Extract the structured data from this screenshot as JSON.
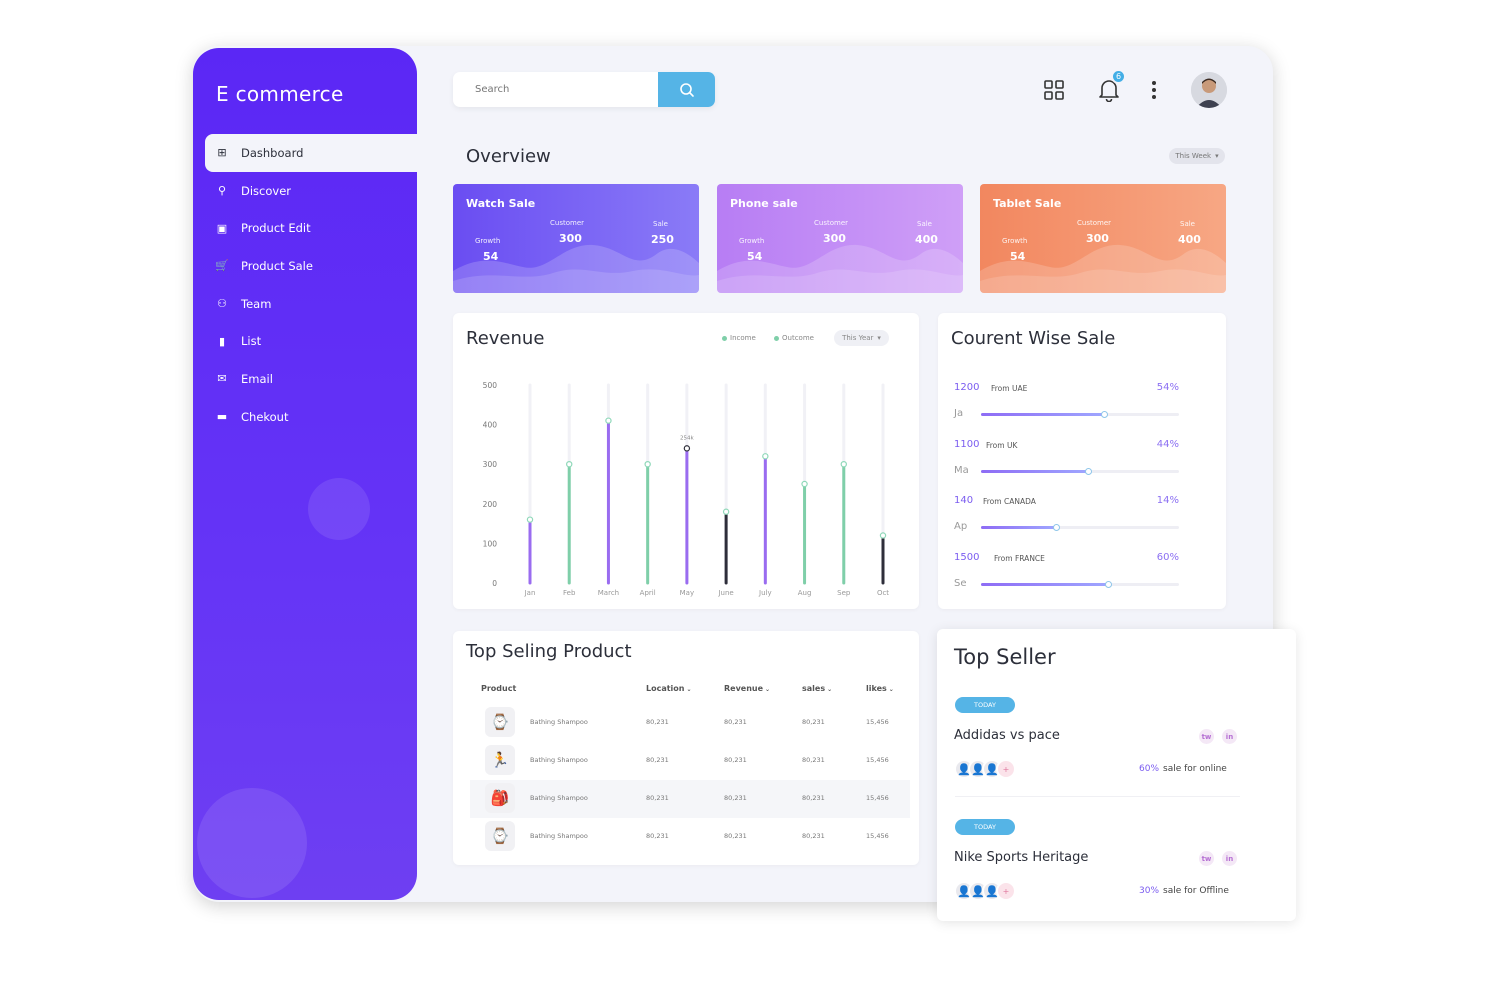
{
  "sidebar": {
    "brand": "E commerce",
    "items": [
      {
        "label": "Dashboard",
        "icon": "grid-icon",
        "active": true
      },
      {
        "label": "Discover",
        "icon": "search-icon"
      },
      {
        "label": "Product Edit",
        "icon": "edit-icon"
      },
      {
        "label": "Product Sale",
        "icon": "cart-icon"
      },
      {
        "label": "Team",
        "icon": "team-icon"
      },
      {
        "label": "List",
        "icon": "bar-chart-icon"
      },
      {
        "label": "Email",
        "icon": "mail-icon"
      },
      {
        "label": "Chekout",
        "icon": "card-icon"
      }
    ]
  },
  "header": {
    "search_placeholder": "Search",
    "notification_count": "6"
  },
  "overview": {
    "title": "Overview",
    "period": "This Week",
    "cards": [
      {
        "title": "Watch Sale",
        "growth_label": "Growth",
        "growth": "54",
        "customer_label": "Customer",
        "customer": "300",
        "sale_label": "Sale",
        "sale": "250",
        "color_from": "#6a4df2",
        "color_to": "#8a7bf7"
      },
      {
        "title": "Phone sale",
        "growth_label": "Growth",
        "growth": "54",
        "customer_label": "Customer",
        "customer": "300",
        "sale_label": "Sale",
        "sale": "400",
        "color_from": "#b77df4",
        "color_to": "#cf9ff7"
      },
      {
        "title": "Tablet Sale",
        "growth_label": "Growth",
        "growth": "54",
        "customer_label": "Customer",
        "customer": "300",
        "sale_label": "Sale",
        "sale": "400",
        "color_from": "#f2875f",
        "color_to": "#f7a784"
      }
    ]
  },
  "revenue": {
    "title": "Revenue",
    "legend_income": "Income",
    "legend_outcome": "Outcome",
    "period": "This Year",
    "peak_label": "254k"
  },
  "chart_data": {
    "type": "bar",
    "title": "Revenue",
    "categories": [
      "Jan",
      "Feb",
      "March",
      "April",
      "May",
      "June",
      "July",
      "Aug",
      "Sep",
      "Oct"
    ],
    "yticks": [
      "500",
      "400",
      "300",
      "200",
      "100",
      "0"
    ],
    "ylim": [
      0,
      500
    ],
    "values": [
      160,
      300,
      410,
      300,
      340,
      180,
      320,
      250,
      300,
      120
    ],
    "series_colors": [
      "#9a6cf0",
      "#7fcfa9",
      "#9a6cf0",
      "#7fcfa9",
      "#9a6cf0",
      "#2e2e3a",
      "#9a6cf0",
      "#7fcfa9",
      "#7fcfa9",
      "#2e2e3a"
    ],
    "grid": false,
    "legend": "top-right"
  },
  "current_wise_sale": {
    "title": "Courent Wise Sale",
    "rows": [
      {
        "num": "1200",
        "from": "From UAE",
        "pct": "54%",
        "abbr": "Ja",
        "fill": 0.62
      },
      {
        "num": "1100",
        "from": "From UK",
        "pct": "44%",
        "abbr": "Ma",
        "fill": 0.54
      },
      {
        "num": "140",
        "from": "From CANADA",
        "pct": "14%",
        "abbr": "Ap",
        "fill": 0.38
      },
      {
        "num": "1500",
        "from": "From FRANCE",
        "pct": "60%",
        "abbr": "Se",
        "fill": 0.64
      }
    ]
  },
  "top_selling": {
    "title": "Top Seling Product",
    "columns": [
      "Product",
      "Location",
      "Revenue",
      "sales",
      "likes"
    ],
    "rows": [
      {
        "icon": "watch-icon",
        "glyph": "⌚",
        "name": "Bathing Shampoo",
        "location": "80,231",
        "revenue": "80,231",
        "sales": "80,231",
        "likes": "15,456"
      },
      {
        "icon": "figure-icon",
        "glyph": "🏃",
        "name": "Bathing Shampoo",
        "location": "80,231",
        "revenue": "80,231",
        "sales": "80,231",
        "likes": "15,456"
      },
      {
        "icon": "backpack-icon",
        "glyph": "🎒",
        "name": "Bathing Shampoo",
        "location": "80,231",
        "revenue": "80,231",
        "sales": "80,231",
        "likes": "15,456"
      },
      {
        "icon": "watch-icon",
        "glyph": "⌚",
        "name": "Bathing Shampoo",
        "location": "80,231",
        "revenue": "80,231",
        "sales": "80,231",
        "likes": "15,456"
      }
    ]
  },
  "top_seller": {
    "title": "Top Seller",
    "items": [
      {
        "tag": "TODAY",
        "name": "Addidas vs pace",
        "twitter": "tw",
        "linkedin": "in",
        "more": "+",
        "pct": "60%",
        "sale_text": "sale for online"
      },
      {
        "tag": "TODAY",
        "name": "Nike Sports Heritage",
        "twitter": "tw",
        "linkedin": "in",
        "more": "+",
        "pct": "30%",
        "sale_text": "sale for Offline"
      }
    ]
  }
}
